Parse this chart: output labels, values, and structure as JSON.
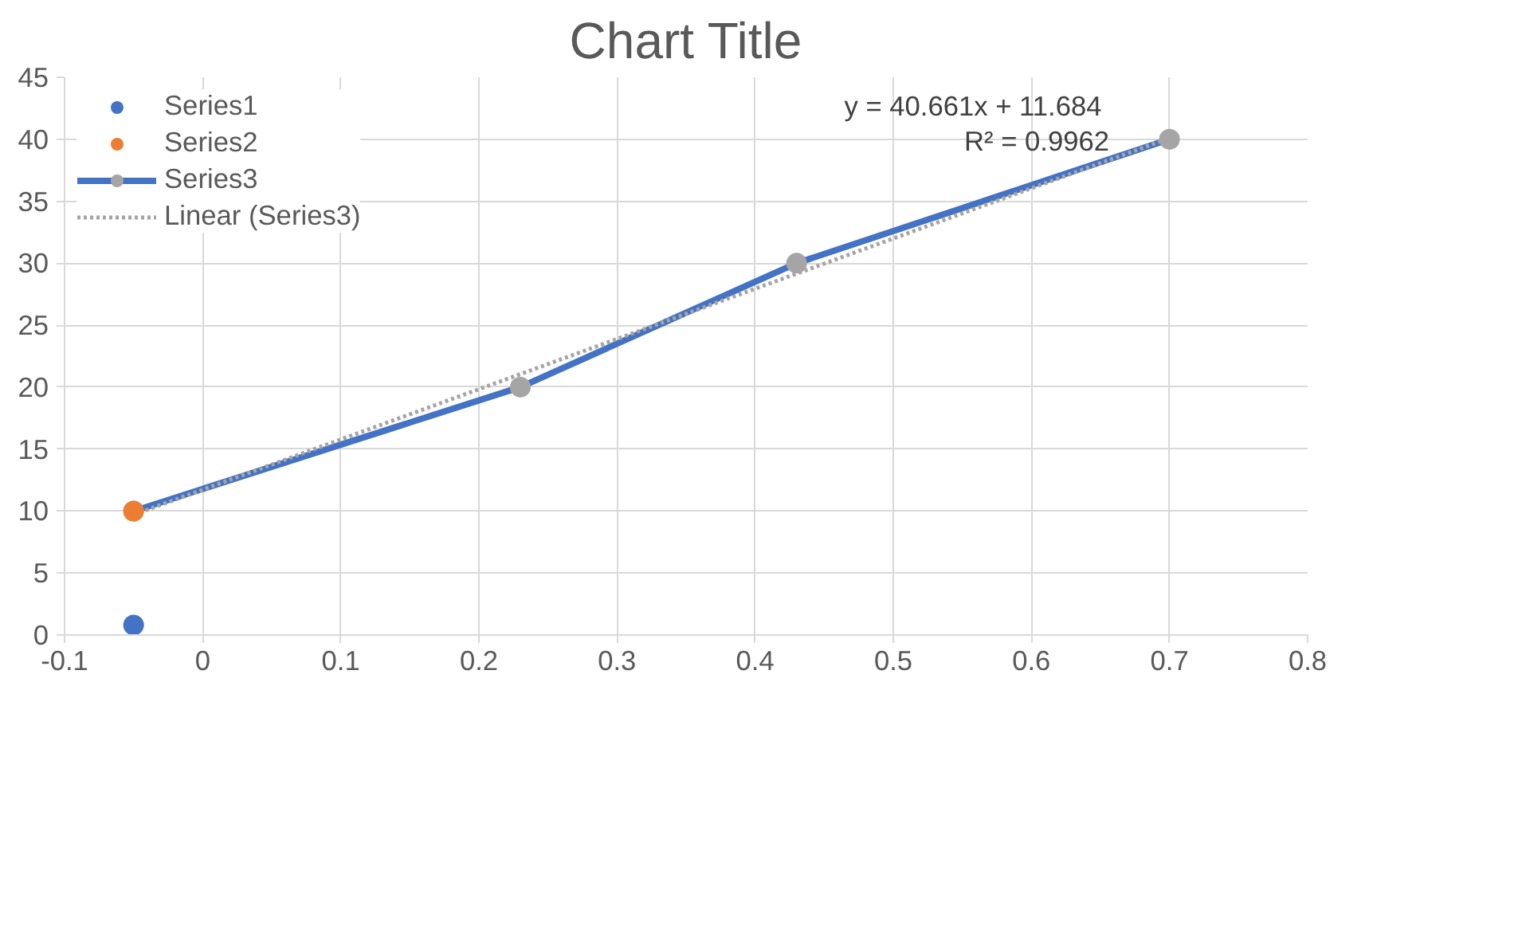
{
  "chart_data": {
    "type": "scatter",
    "title": "Chart Title",
    "series": [
      {
        "name": "Series1",
        "color": "#4472c4",
        "x": [
          -0.05
        ],
        "values": [
          0.8
        ]
      },
      {
        "name": "Series2",
        "color": "#ed7d31",
        "x": [
          -0.05
        ],
        "values": [
          10
        ]
      },
      {
        "name": "Series3",
        "type": "line",
        "color": "#4472c4",
        "colors": [
          "#a5a5a5",
          "#a5a5a5",
          "#a5a5a5",
          "#a5a5a5"
        ],
        "marker": "circle",
        "line_style": "solid",
        "x": [
          -0.05,
          0.23,
          0.43,
          0.7
        ],
        "values": [
          10,
          20,
          30,
          40
        ]
      },
      {
        "name": "Linear (Series3)",
        "type": "line",
        "color": "#a5a5a5",
        "marker": "none",
        "line_style": "dotted",
        "x": [
          -0.05,
          0.7
        ],
        "values": [
          9.7,
          40.1
        ]
      }
    ],
    "annotations": [
      "y = 40.661x + 11.684\nR² = 0.9962"
    ],
    "xlim": [
      -0.1,
      0.8
    ],
    "xticks": [
      -0.1,
      0,
      0.1,
      0.2,
      0.3,
      0.4,
      0.5,
      0.6,
      0.7,
      0.8
    ],
    "ylim": [
      0,
      45
    ],
    "yticks": [
      0,
      5,
      10,
      15,
      20,
      25,
      30,
      35,
      40,
      45
    ],
    "grid": true,
    "legend": "top left",
    "marker": "circle"
  }
}
